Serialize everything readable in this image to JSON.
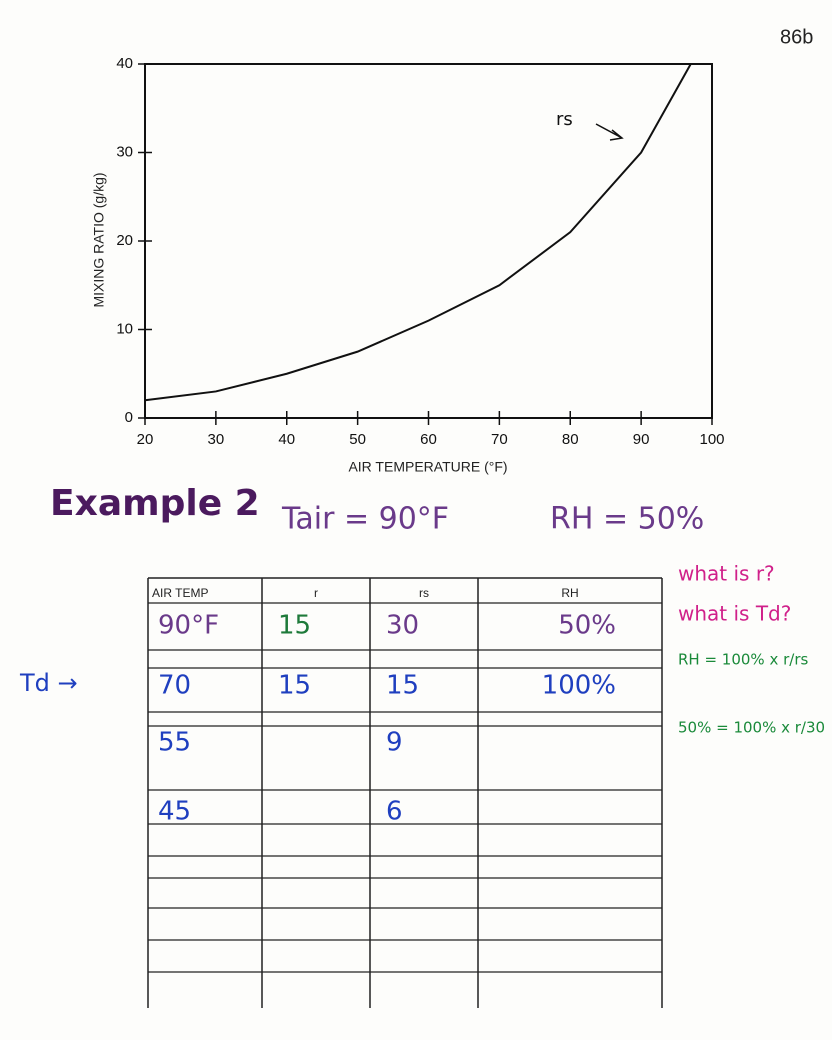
{
  "page_number": "86b",
  "chart_data": {
    "type": "line",
    "x_label": "AIR TEMPERATURE (°F)",
    "y_label": "MIXING RATIO (g/kg)",
    "x": [
      20,
      30,
      40,
      50,
      60,
      70,
      80,
      90,
      97
    ],
    "series": [
      {
        "name": "rs",
        "color": "#111111",
        "values": [
          2,
          3,
          5,
          7.5,
          11,
          15,
          21,
          30,
          40
        ]
      }
    ],
    "xlim": [
      20,
      100
    ],
    "xticks": [
      20,
      30,
      40,
      50,
      60,
      70,
      80,
      90,
      100
    ],
    "ylim": [
      0,
      40
    ],
    "yticks": [
      0,
      10,
      20,
      30,
      40
    ]
  },
  "example": {
    "title": "Example 2",
    "tair": "Tair = 90°F",
    "rh": "RH = 50%"
  },
  "table": {
    "header": [
      "AIR TEMP",
      "r",
      "rs",
      "RH"
    ],
    "rows": [
      [
        "90°F",
        "15",
        "30",
        "50%"
      ],
      [
        "70",
        "15",
        "15",
        "100%"
      ],
      [
        "55",
        null,
        "9",
        null
      ],
      [
        "45",
        null,
        "6",
        null
      ]
    ]
  },
  "td_label": "Td →",
  "notes": {
    "q1": "what is r?",
    "q2": "what is Td?",
    "eq1": "RH = 100% x r/rs",
    "eq2": "50% = 100% x r/30"
  }
}
